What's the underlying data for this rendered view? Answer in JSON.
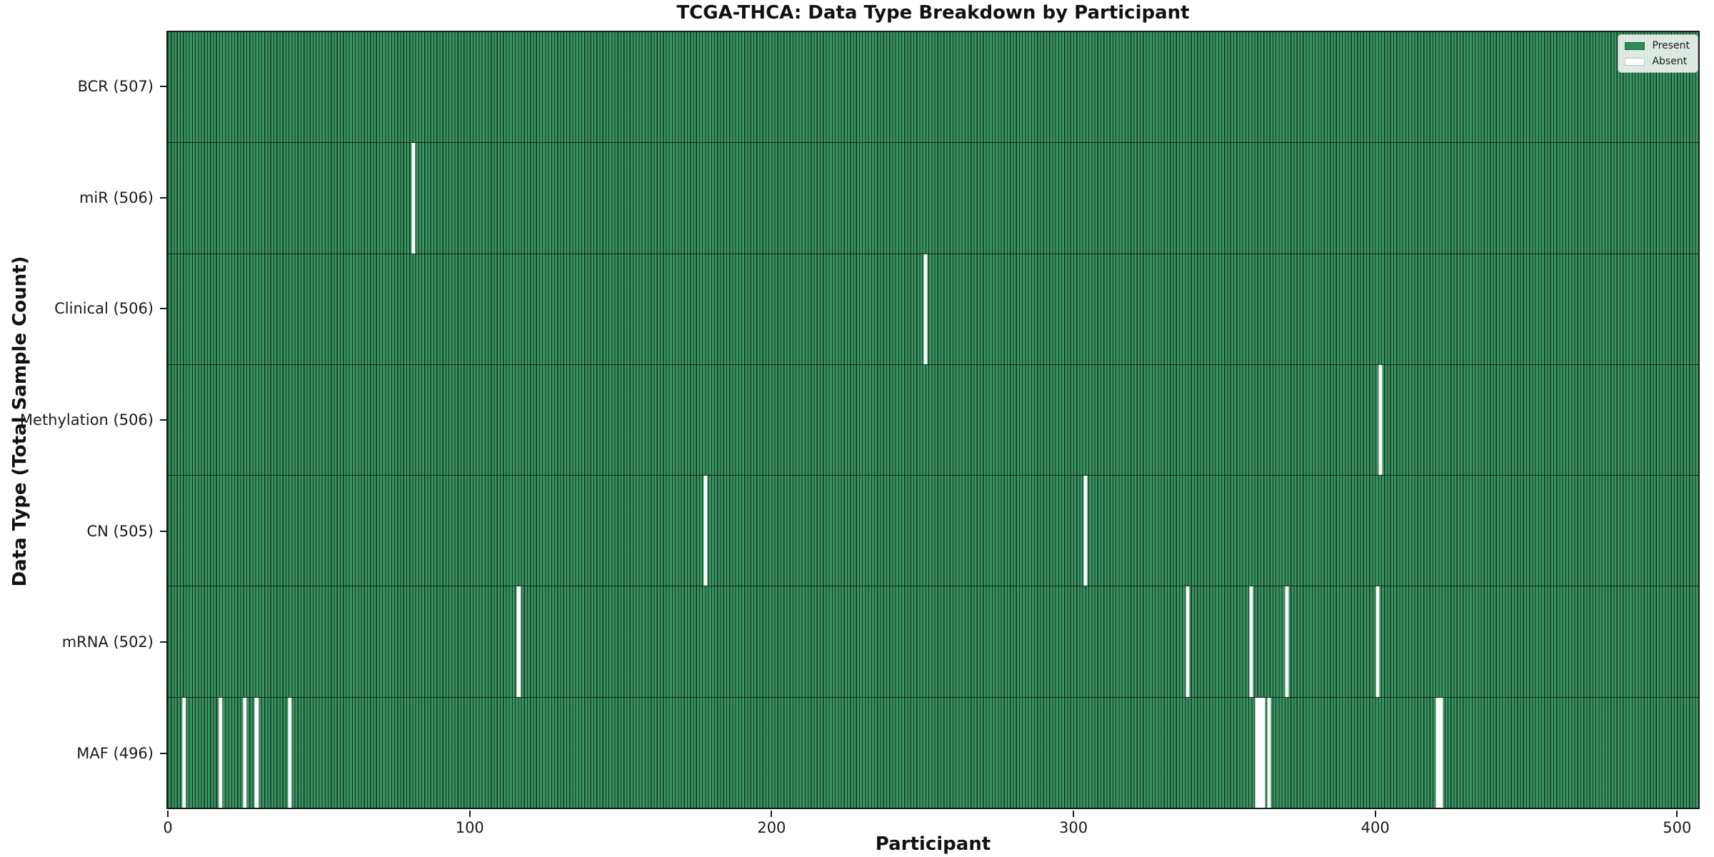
{
  "chart_data": {
    "type": "heatmap",
    "title": "TCGA-THCA: Data Type Breakdown by Participant",
    "xlabel": "Participant",
    "ylabel": "Data Type (Total Sample Count)",
    "x_ticks": [
      0,
      100,
      200,
      300,
      400,
      500
    ],
    "x_axis_units": 508,
    "total_participants": 507,
    "grid": false,
    "legend_position": "upper right",
    "colors": {
      "present": "#2e8b57",
      "absent": "#ffffff",
      "bar_edge": "#143623",
      "spine": "#1a1a1a"
    },
    "legend": [
      {
        "label": "Present",
        "color": "#2e8b57"
      },
      {
        "label": "Absent",
        "color": "#ffffff"
      }
    ],
    "rows": [
      {
        "label": "BCR (507)",
        "data_type": "BCR",
        "count": 507,
        "absent_participants": []
      },
      {
        "label": "miR (506)",
        "data_type": "miR",
        "count": 506,
        "absent_participants": [
          81
        ]
      },
      {
        "label": "Clinical (506)",
        "data_type": "Clinical",
        "count": 506,
        "absent_participants": [
          251
        ]
      },
      {
        "label": "Methylation (506)",
        "data_type": "Methylation",
        "count": 506,
        "absent_participants": [
          402
        ]
      },
      {
        "label": "CN (505)",
        "data_type": "CN",
        "count": 505,
        "absent_participants": [
          178,
          304
        ]
      },
      {
        "label": "mRNA (502)",
        "data_type": "mRNA",
        "count": 502,
        "absent_participants": [
          116,
          338,
          359,
          371,
          401
        ]
      },
      {
        "label": "MAF (496)",
        "data_type": "MAF",
        "count": 496,
        "absent_participants": [
          5,
          17,
          25,
          29,
          40,
          361,
          362,
          363,
          365,
          421,
          422
        ]
      }
    ]
  }
}
